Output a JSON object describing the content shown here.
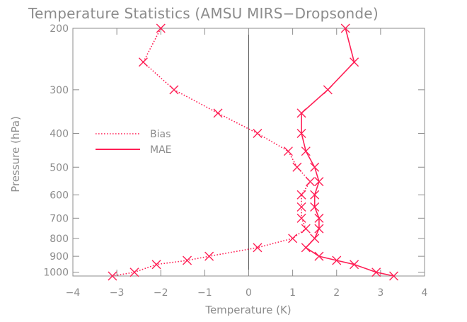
{
  "chart_data": {
    "type": "line",
    "title": "Temperature Statistics (AMSU MIRS−Dropsonde)",
    "xlabel": "Temperature (K)",
    "ylabel": "Pressure (hPa)",
    "xlim": [
      -4,
      4
    ],
    "ylim": [
      1025,
      200
    ],
    "y_scale": "log",
    "x_ticks": [
      -4,
      -3,
      -2,
      -1,
      0,
      1,
      2,
      3,
      4
    ],
    "y_ticks": [
      200,
      300,
      400,
      500,
      600,
      700,
      800,
      900,
      1000
    ],
    "legend_position": "left",
    "grid": false,
    "zero_line": true,
    "series": [
      {
        "name": "Bias",
        "style": "dotted",
        "color": "#ff1f55",
        "points": [
          {
            "x": -2.0,
            "y": 200
          },
          {
            "x": -2.4,
            "y": 250
          },
          {
            "x": -1.7,
            "y": 300
          },
          {
            "x": -0.7,
            "y": 350
          },
          {
            "x": 0.2,
            "y": 400
          },
          {
            "x": 0.9,
            "y": 450
          },
          {
            "x": 1.1,
            "y": 500
          },
          {
            "x": 1.4,
            "y": 550
          },
          {
            "x": 1.2,
            "y": 600
          },
          {
            "x": 1.2,
            "y": 650
          },
          {
            "x": 1.2,
            "y": 700
          },
          {
            "x": 1.3,
            "y": 750
          },
          {
            "x": 1.0,
            "y": 800
          },
          {
            "x": 0.2,
            "y": 850
          },
          {
            "x": -0.9,
            "y": 900
          },
          {
            "x": -1.4,
            "y": 925
          },
          {
            "x": -2.1,
            "y": 950
          },
          {
            "x": -2.6,
            "y": 1000
          },
          {
            "x": -3.1,
            "y": 1025
          }
        ]
      },
      {
        "name": "MAE",
        "style": "solid",
        "color": "#ff1f55",
        "points": [
          {
            "x": 2.2,
            "y": 200
          },
          {
            "x": 2.4,
            "y": 250
          },
          {
            "x": 1.8,
            "y": 300
          },
          {
            "x": 1.2,
            "y": 350
          },
          {
            "x": 1.2,
            "y": 400
          },
          {
            "x": 1.3,
            "y": 450
          },
          {
            "x": 1.5,
            "y": 500
          },
          {
            "x": 1.6,
            "y": 550
          },
          {
            "x": 1.5,
            "y": 600
          },
          {
            "x": 1.5,
            "y": 650
          },
          {
            "x": 1.6,
            "y": 700
          },
          {
            "x": 1.6,
            "y": 750
          },
          {
            "x": 1.5,
            "y": 800
          },
          {
            "x": 1.3,
            "y": 850
          },
          {
            "x": 1.6,
            "y": 900
          },
          {
            "x": 2.0,
            "y": 925
          },
          {
            "x": 2.4,
            "y": 950
          },
          {
            "x": 2.9,
            "y": 1000
          },
          {
            "x": 3.3,
            "y": 1025
          }
        ]
      }
    ]
  }
}
